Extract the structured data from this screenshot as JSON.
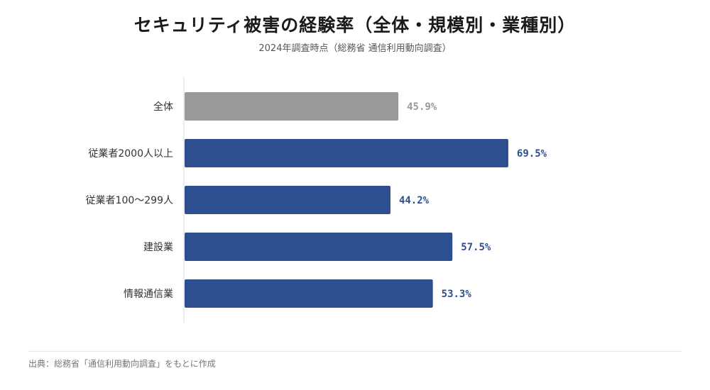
{
  "title": "セキュリティ被害の経験率（全体・規模別・業種別）",
  "subtitle": "2024年調査時点（総務省 通信利用動向調査）",
  "source": "出典：総務省「通信利用動向調査」をもとに作成",
  "colors": {
    "overall": "#999999",
    "segment": "#2e4f8f",
    "axis": "#d9d9d9",
    "label": "#333333"
  },
  "chart_data": {
    "type": "bar",
    "orientation": "horizontal",
    "categories": [
      "全体",
      "従業者2000人以上",
      "従業者100〜299人",
      "建設業",
      "情報通信業"
    ],
    "values": [
      45.9,
      69.5,
      44.2,
      57.5,
      53.3
    ],
    "value_labels": [
      "45.9%",
      "69.5%",
      "44.2%",
      "57.5%",
      "53.3%"
    ],
    "unit": "%",
    "xlim": [
      0,
      100
    ],
    "grid": false,
    "legend": "none"
  }
}
